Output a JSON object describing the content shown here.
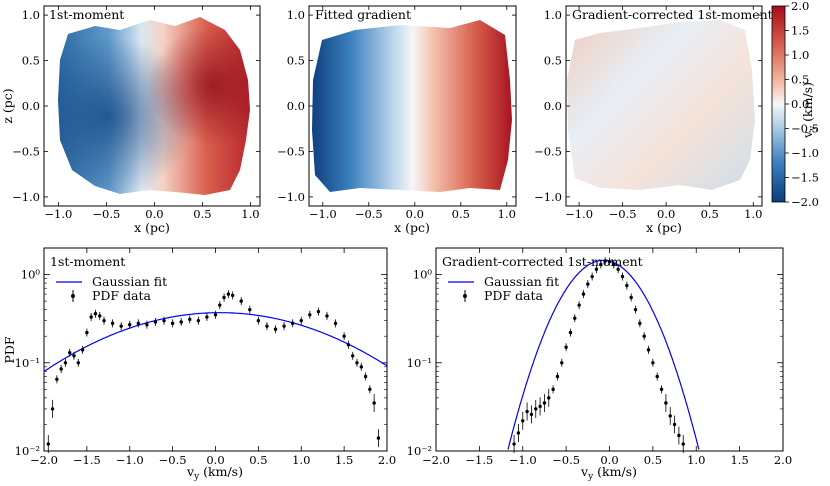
{
  "colors": {
    "cmap_low": "#0b3c7a",
    "cmap_mid": "#f6f6f6",
    "cmap_high": "#a40b1d",
    "fit_line": "#0000ff",
    "data": "#000000"
  },
  "colorbar": {
    "label": "v_y (km/s)",
    "label_main": "v",
    "label_sub": "y",
    "label_unit": " (km/s)",
    "ticks": [
      "2.0",
      "1.5",
      "1.0",
      "0.5",
      "0.0",
      "−0.5",
      "−1.0",
      "−1.5",
      "−2.0"
    ],
    "range": [
      -2.0,
      2.0
    ]
  },
  "chart_data": [
    {
      "type": "heatmap",
      "title": "1st-moment",
      "xlabel": "x (pc)",
      "ylabel": "z (pc)",
      "xlim": [
        -1.15,
        1.1
      ],
      "ylim": [
        -1.1,
        1.1
      ],
      "xticks": [
        "−1.0",
        "−0.5",
        "0.0",
        "0.5",
        "1.0"
      ],
      "yticks": [
        "1.0",
        "0.5",
        "0.0",
        "−0.5",
        "−1.0"
      ],
      "value_range_kms": [
        -2.0,
        2.0
      ],
      "description_gradient": "negative (blue) at x<0, positive (red) at x>0"
    },
    {
      "type": "heatmap",
      "title": "Fitted gradient",
      "xlabel": "x (pc)",
      "xlim": [
        -1.15,
        1.1
      ],
      "ylim": [
        -1.1,
        1.1
      ],
      "xticks": [
        "−1.0",
        "−0.5",
        "0.0",
        "0.5",
        "1.0"
      ],
      "value_range_kms": [
        -2.0,
        2.0
      ]
    },
    {
      "type": "heatmap",
      "title": "Gradient-corrected 1st-moment",
      "xlabel": "x (pc)",
      "ylabel": "z (pc)",
      "xlim": [
        -1.15,
        1.1
      ],
      "ylim": [
        -1.1,
        1.1
      ],
      "xticks": [
        "−1.0",
        "−0.5",
        "0.0",
        "0.5",
        "1.0"
      ],
      "yticks": [
        "1.0",
        "0.5",
        "0.0",
        "−0.5",
        "−1.0"
      ],
      "value_range_kms": [
        -2.0,
        2.0
      ]
    },
    {
      "type": "scatter",
      "title": "1st-moment",
      "xlabel": "v_y (km/s)",
      "ylabel": "PDF",
      "yscale": "log",
      "xlim": [
        -2.0,
        2.0
      ],
      "ylim": [
        0.01,
        2.0
      ],
      "xticks": [
        "−2.0",
        "−1.5",
        "−1.0",
        "−0.5",
        "0.0",
        "0.5",
        "1.0",
        "1.5",
        "2.0"
      ],
      "yticks": [
        "10⁰",
        "10⁻¹",
        "10⁻²"
      ],
      "legend": [
        "Gaussian fit",
        "PDF data"
      ],
      "legend_position": "top-left",
      "fit": {
        "amplitude": 0.37,
        "mean": 0.05,
        "sigma": 1.17
      },
      "points": [
        [
          -1.95,
          0.012
        ],
        [
          -1.9,
          0.03
        ],
        [
          -1.85,
          0.065
        ],
        [
          -1.8,
          0.085
        ],
        [
          -1.75,
          0.1
        ],
        [
          -1.7,
          0.13
        ],
        [
          -1.65,
          0.12
        ],
        [
          -1.6,
          0.1
        ],
        [
          -1.55,
          0.14
        ],
        [
          -1.5,
          0.22
        ],
        [
          -1.45,
          0.33
        ],
        [
          -1.4,
          0.36
        ],
        [
          -1.35,
          0.34
        ],
        [
          -1.3,
          0.3
        ],
        [
          -1.2,
          0.28
        ],
        [
          -1.1,
          0.26
        ],
        [
          -1.0,
          0.27
        ],
        [
          -0.9,
          0.28
        ],
        [
          -0.8,
          0.27
        ],
        [
          -0.7,
          0.29
        ],
        [
          -0.6,
          0.3
        ],
        [
          -0.5,
          0.28
        ],
        [
          -0.4,
          0.29
        ],
        [
          -0.3,
          0.31
        ],
        [
          -0.2,
          0.3
        ],
        [
          -0.1,
          0.33
        ],
        [
          0.0,
          0.35
        ],
        [
          0.05,
          0.45
        ],
        [
          0.1,
          0.55
        ],
        [
          0.15,
          0.6
        ],
        [
          0.2,
          0.58
        ],
        [
          0.3,
          0.5
        ],
        [
          0.4,
          0.4
        ],
        [
          0.5,
          0.3
        ],
        [
          0.6,
          0.26
        ],
        [
          0.7,
          0.24
        ],
        [
          0.8,
          0.26
        ],
        [
          0.9,
          0.28
        ],
        [
          1.0,
          0.3
        ],
        [
          1.1,
          0.35
        ],
        [
          1.2,
          0.38
        ],
        [
          1.3,
          0.34
        ],
        [
          1.4,
          0.28
        ],
        [
          1.5,
          0.2
        ],
        [
          1.55,
          0.16
        ],
        [
          1.6,
          0.12
        ],
        [
          1.65,
          0.1
        ],
        [
          1.7,
          0.09
        ],
        [
          1.75,
          0.07
        ],
        [
          1.8,
          0.05
        ],
        [
          1.85,
          0.035
        ],
        [
          1.9,
          0.014
        ]
      ]
    },
    {
      "type": "scatter",
      "title": "Gradient-corrected 1st-moment",
      "xlabel": "v_y (km/s)",
      "yscale": "log",
      "xlim": [
        -2.0,
        2.0
      ],
      "ylim": [
        0.01,
        2.0
      ],
      "xticks": [
        "−2.0",
        "−1.5",
        "−1.0",
        "−0.5",
        "0.0",
        "0.5",
        "1.0",
        "1.5",
        "2.0"
      ],
      "yticks": [
        "10⁰",
        "10⁻¹",
        "10⁻²"
      ],
      "legend": [
        "Gaussian fit",
        "PDF data"
      ],
      "legend_position": "top-left",
      "fit": {
        "amplitude": 1.45,
        "mean": -0.07,
        "sigma": 0.35
      },
      "points": [
        [
          -1.1,
          0.012
        ],
        [
          -1.05,
          0.016
        ],
        [
          -1.0,
          0.022
        ],
        [
          -0.95,
          0.028
        ],
        [
          -0.9,
          0.026
        ],
        [
          -0.85,
          0.03
        ],
        [
          -0.8,
          0.032
        ],
        [
          -0.75,
          0.035
        ],
        [
          -0.7,
          0.04
        ],
        [
          -0.65,
          0.05
        ],
        [
          -0.6,
          0.07
        ],
        [
          -0.55,
          0.1
        ],
        [
          -0.5,
          0.15
        ],
        [
          -0.45,
          0.22
        ],
        [
          -0.4,
          0.32
        ],
        [
          -0.35,
          0.45
        ],
        [
          -0.3,
          0.6
        ],
        [
          -0.25,
          0.78
        ],
        [
          -0.2,
          0.95
        ],
        [
          -0.15,
          1.15
        ],
        [
          -0.1,
          1.3
        ],
        [
          -0.05,
          1.42
        ],
        [
          0.0,
          1.4
        ],
        [
          0.05,
          1.3
        ],
        [
          0.1,
          1.15
        ],
        [
          0.15,
          0.95
        ],
        [
          0.2,
          0.75
        ],
        [
          0.25,
          0.55
        ],
        [
          0.3,
          0.4
        ],
        [
          0.35,
          0.28
        ],
        [
          0.4,
          0.2
        ],
        [
          0.45,
          0.14
        ],
        [
          0.5,
          0.1
        ],
        [
          0.55,
          0.07
        ],
        [
          0.6,
          0.05
        ],
        [
          0.65,
          0.035
        ],
        [
          0.7,
          0.025
        ],
        [
          0.75,
          0.02
        ],
        [
          0.8,
          0.015
        ],
        [
          0.85,
          0.012
        ]
      ]
    }
  ]
}
